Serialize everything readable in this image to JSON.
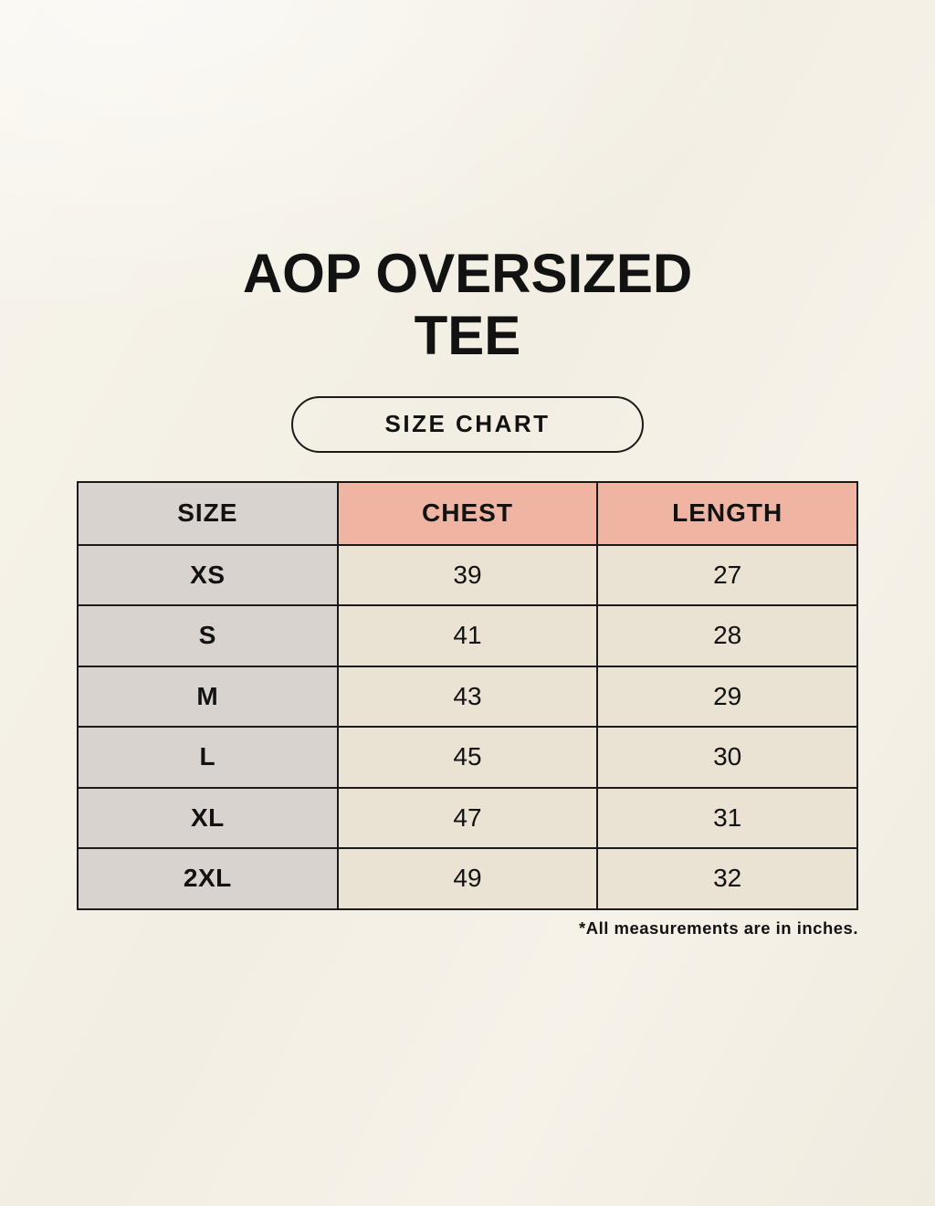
{
  "page": {
    "title": "AOP OVERSIZED TEE",
    "badge_label": "SIZE CHART",
    "footnote": "*All measurements are in inches."
  },
  "table": {
    "columns": [
      "SIZE",
      "CHEST",
      "LENGTH"
    ],
    "rows": [
      {
        "size": "XS",
        "chest": "39",
        "length": "27"
      },
      {
        "size": "S",
        "chest": "41",
        "length": "28"
      },
      {
        "size": "M",
        "chest": "43",
        "length": "29"
      },
      {
        "size": "L",
        "chest": "45",
        "length": "30"
      },
      {
        "size": "XL",
        "chest": "47",
        "length": "31"
      },
      {
        "size": "2XL",
        "chest": "49",
        "length": "32"
      }
    ],
    "units_note": "inches"
  },
  "colors": {
    "background": "#f3f0e6",
    "header_pink": "#efb4a2",
    "cell_gray": "#d9d3cf",
    "cell_beige": "#eae3d4",
    "border": "#1c1a18",
    "text": "#121212"
  }
}
